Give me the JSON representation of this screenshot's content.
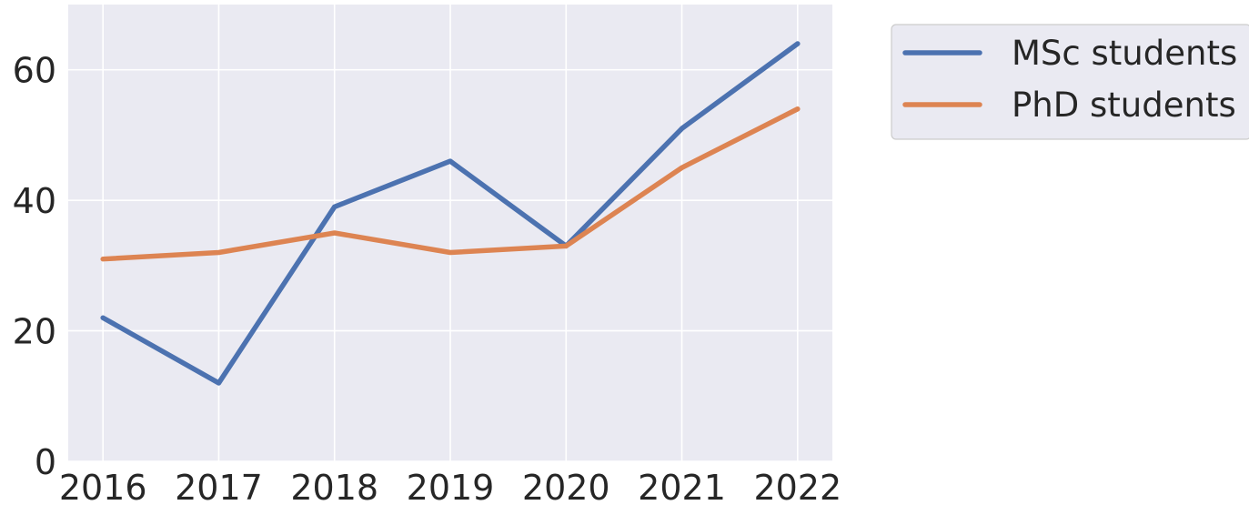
{
  "chart_data": {
    "type": "line",
    "title": "",
    "xlabel": "",
    "ylabel": "",
    "x": [
      2016,
      2017,
      2018,
      2019,
      2020,
      2021,
      2022
    ],
    "x_tick_labels": [
      "2016",
      "2017",
      "2018",
      "2019",
      "2020",
      "2021",
      "2022"
    ],
    "y_ticks": [
      0,
      20,
      40,
      60
    ],
    "y_tick_labels": [
      "0",
      "20",
      "40",
      "60"
    ],
    "ylim": [
      0,
      70
    ],
    "xlim": [
      2015.7,
      2022.3
    ],
    "grid": true,
    "legend_position": "upper-right-outside",
    "series": [
      {
        "name": "MSc students",
        "color": "#4c72b0",
        "values": [
          22,
          12,
          39,
          46,
          33,
          51,
          64
        ]
      },
      {
        "name": "PhD students",
        "color": "#dd8452",
        "values": [
          31,
          32,
          35,
          32,
          33,
          45,
          54
        ]
      }
    ],
    "colors": {
      "plot_background": "#eaeaf2",
      "grid": "#ffffff",
      "text": "#262626"
    }
  }
}
